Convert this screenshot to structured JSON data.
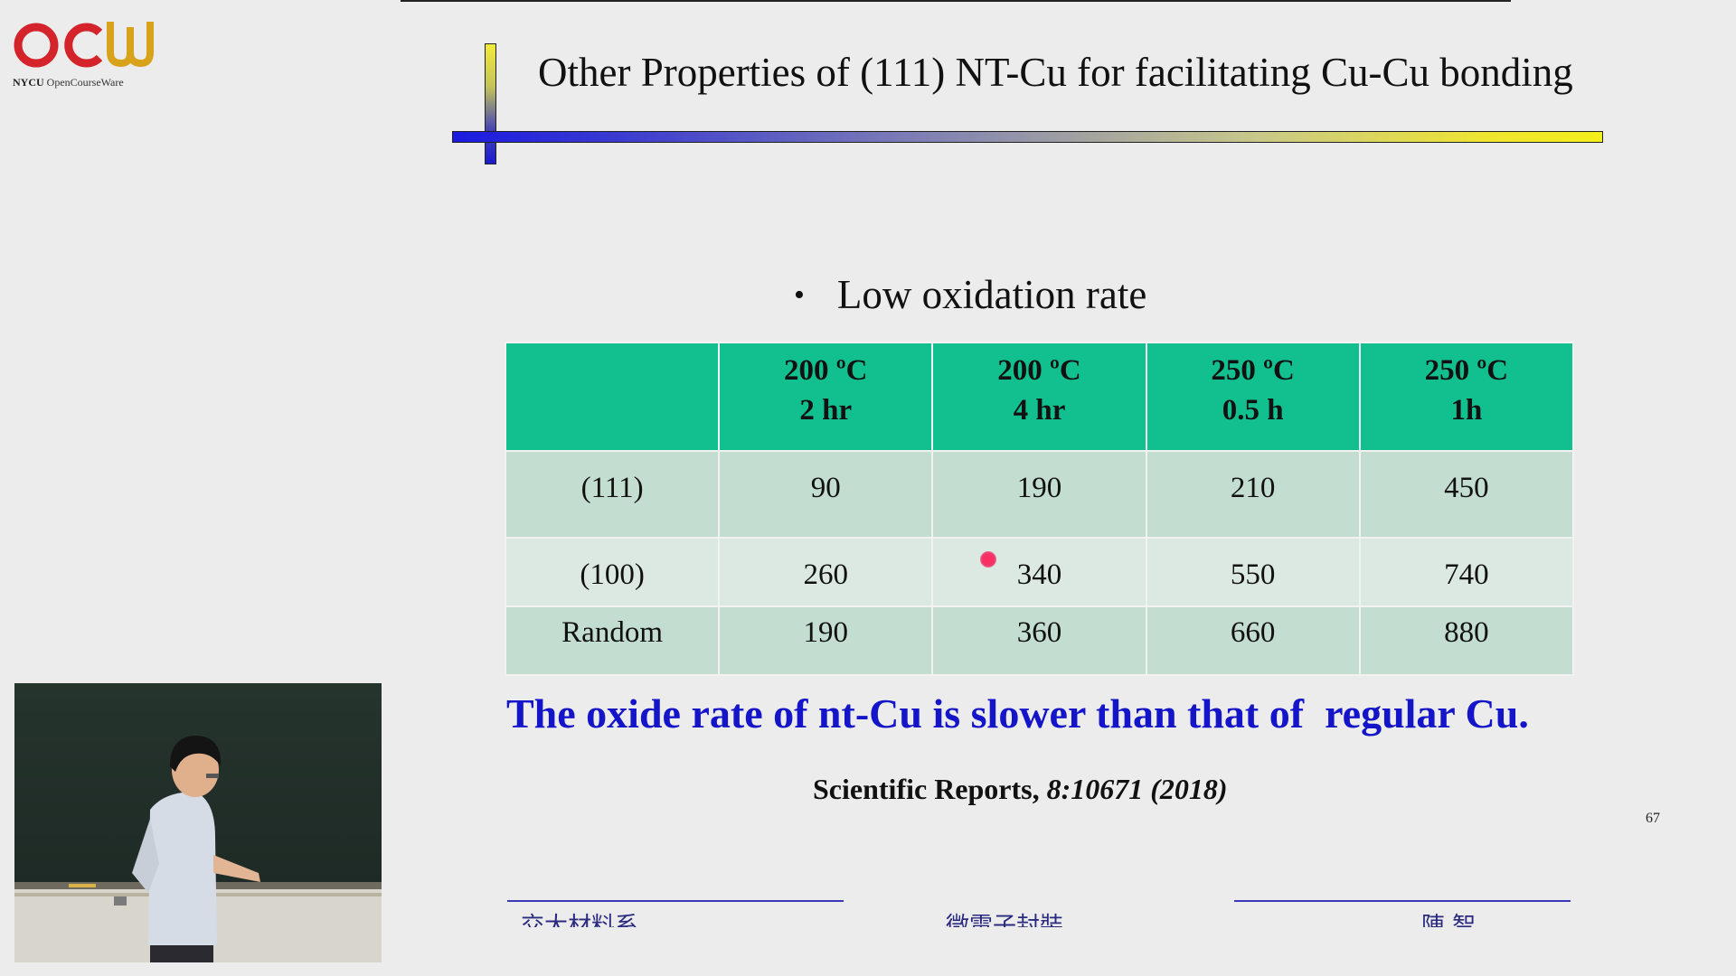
{
  "logo": {
    "mark": "OCW",
    "org": "NYCU",
    "sub": "OpenCourseWare",
    "colors": {
      "red": "#d4232a",
      "gold": "#d9a21b"
    }
  },
  "slide": {
    "title": "Other Properties of (111) NT-Cu for facilitating Cu-Cu bonding",
    "bullet": "Low oxidation rate",
    "table": {
      "headers": [
        {
          "line1": "",
          "line2": ""
        },
        {
          "line1": "200 ºC",
          "line2": "2 hr"
        },
        {
          "line1": "200 ºC",
          "line2": "4 hr"
        },
        {
          "line1": "250 ºC",
          "line2": "0.5 h"
        },
        {
          "line1": "250 ºC",
          "line2": "1h"
        }
      ],
      "rows": [
        {
          "label": "(111)",
          "values": [
            "90",
            "190",
            "210",
            "450"
          ]
        },
        {
          "label": "(100)",
          "values": [
            "260",
            "340",
            "550",
            "740"
          ]
        },
        {
          "label": "Random",
          "values": [
            "190",
            "360",
            "660",
            "880"
          ]
        }
      ]
    },
    "conclusion": "The oxide rate of nt-Cu is slower than that of  regular Cu.",
    "reference": {
      "journal": "Scientific Reports,",
      "citation": "8:10671 (2018)"
    },
    "page_number": "67",
    "footer": {
      "left": "交大材料系",
      "center": "微電子封裝",
      "right": "陳 智"
    },
    "colors": {
      "header_bg": "#12c08f",
      "row_dark": "#c3ddd0",
      "row_light": "#dce9e2",
      "conclusion_text": "#1414c8"
    }
  },
  "icons": {
    "laser_pointer": "laser-pointer-dot",
    "bullet": "bullet-dot-icon"
  }
}
